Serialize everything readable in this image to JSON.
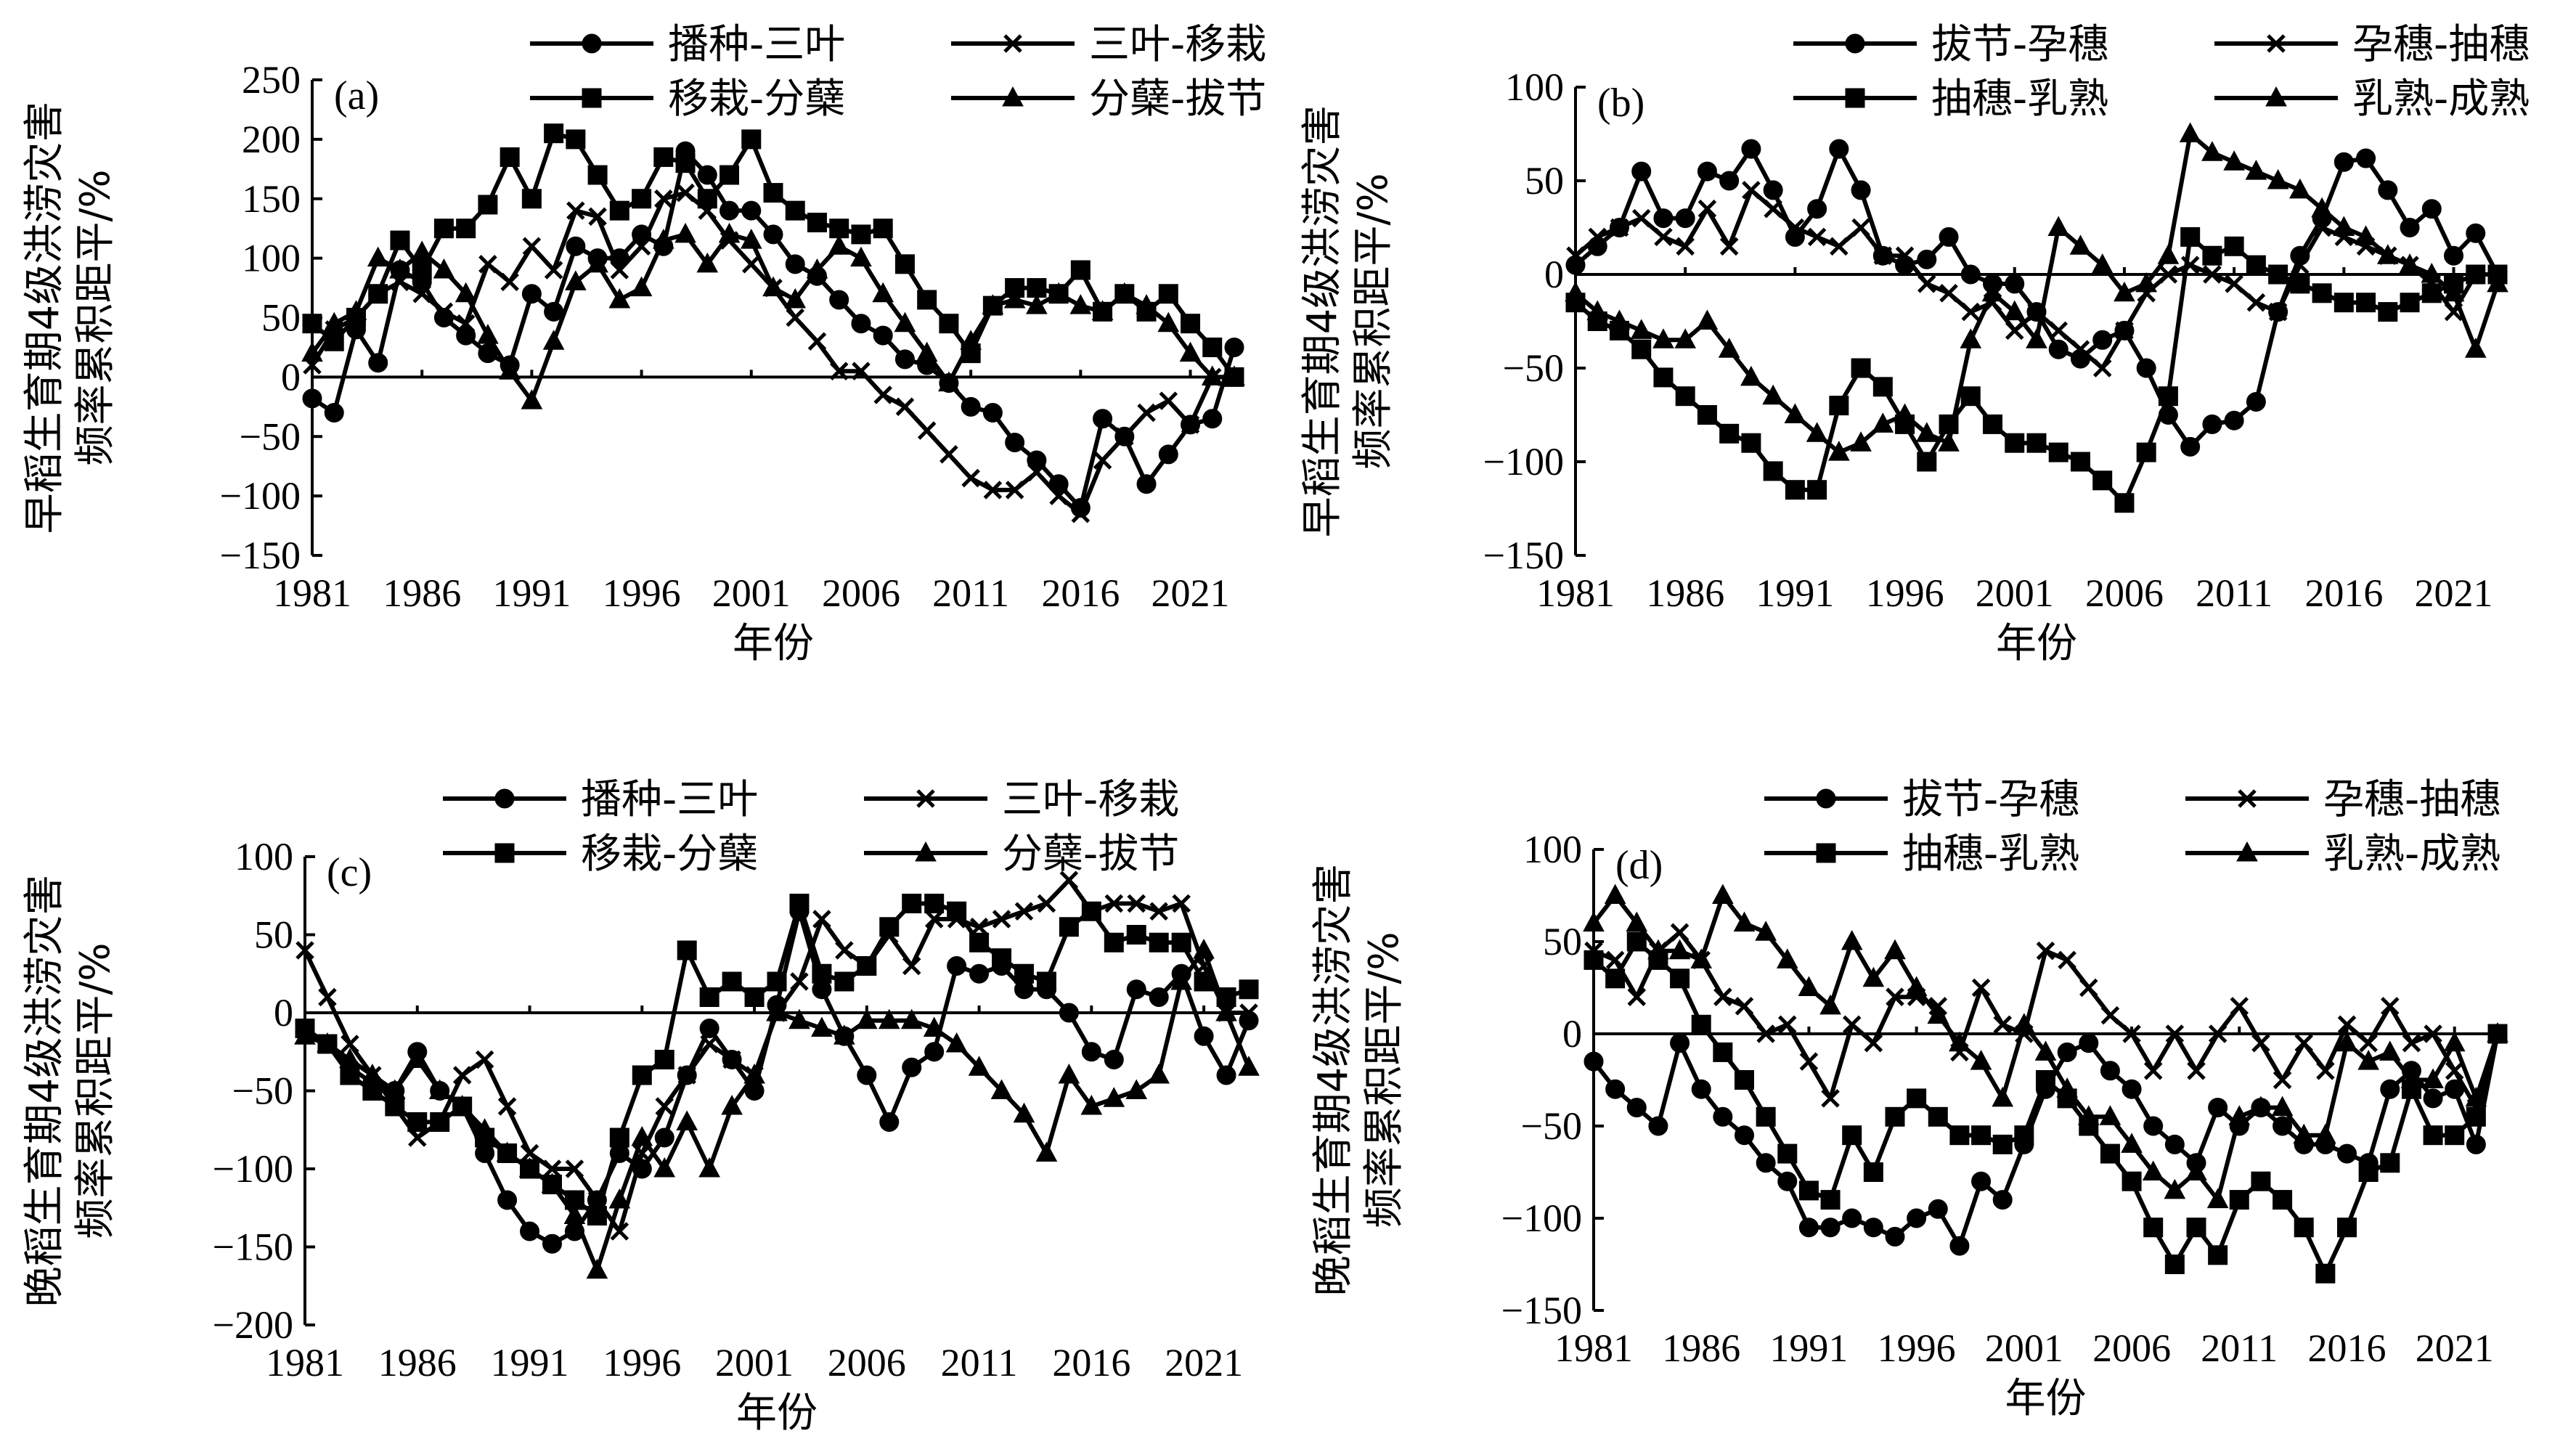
{
  "figure": {
    "xlabel": "年份",
    "x_ticks": [
      "1981",
      "1986",
      "1991",
      "1996",
      "2001",
      "2006",
      "2011",
      "2016",
      "2021"
    ]
  },
  "chart_data": [
    {
      "type": "line",
      "panel": "(a)",
      "ylabel_line1": "早稻生育期4级洪涝灾害",
      "ylabel_line2": "频率累积距平/%",
      "xlabel": "年份",
      "xlim": [
        1981,
        2023
      ],
      "ylim": [
        -150,
        250
      ],
      "y_ticks": [
        "250",
        "200",
        "150",
        "100",
        "50",
        "0",
        "−50",
        "−100",
        "−150"
      ],
      "legend": [
        "播种-三叶",
        "三叶-移栽",
        "移栽-分蘖",
        "分蘖-拔节"
      ],
      "x": [
        1981,
        1982,
        1983,
        1984,
        1985,
        1986,
        1987,
        1988,
        1989,
        1990,
        1991,
        1992,
        1993,
        1994,
        1995,
        1996,
        1997,
        1998,
        1999,
        2000,
        2001,
        2002,
        2003,
        2004,
        2005,
        2006,
        2007,
        2008,
        2009,
        2010,
        2011,
        2012,
        2013,
        2014,
        2015,
        2016,
        2017,
        2018,
        2019,
        2020,
        2021,
        2022,
        2023
      ],
      "series": [
        {
          "name": "播种-三叶",
          "marker": "circle",
          "values": [
            -18,
            -30,
            40,
            12,
            90,
            80,
            50,
            35,
            20,
            10,
            70,
            55,
            110,
            100,
            100,
            120,
            110,
            190,
            170,
            140,
            140,
            120,
            95,
            85,
            65,
            45,
            35,
            15,
            10,
            -5,
            -25,
            -30,
            -55,
            -70,
            -90,
            -110,
            -35,
            -50,
            -90,
            -65,
            -40,
            -35,
            25
          ]
        },
        {
          "name": "三叶-移栽",
          "marker": "x",
          "values": [
            10,
            40,
            50,
            70,
            80,
            70,
            55,
            45,
            95,
            80,
            110,
            90,
            140,
            135,
            90,
            110,
            150,
            155,
            140,
            115,
            95,
            75,
            50,
            30,
            5,
            5,
            -15,
            -25,
            -45,
            -65,
            -85,
            -95,
            -95,
            -80,
            -100,
            -115,
            -70,
            -50,
            -30,
            -20,
            -40,
            0,
            0
          ]
        },
        {
          "name": "移栽-分蘖",
          "marker": "square",
          "values": [
            45,
            30,
            50,
            70,
            115,
            90,
            125,
            125,
            145,
            185,
            150,
            205,
            200,
            170,
            140,
            150,
            185,
            180,
            150,
            170,
            200,
            155,
            140,
            130,
            125,
            120,
            125,
            95,
            65,
            45,
            20,
            60,
            75,
            75,
            70,
            90,
            55,
            70,
            55,
            70,
            45,
            25,
            0
          ]
        },
        {
          "name": "分蘖-拔节",
          "marker": "triangle",
          "values": [
            20,
            45,
            55,
            100,
            90,
            105,
            90,
            70,
            35,
            5,
            -20,
            30,
            80,
            95,
            65,
            75,
            115,
            120,
            95,
            120,
            115,
            75,
            65,
            90,
            110,
            100,
            70,
            45,
            20,
            -5,
            30,
            60,
            65,
            60,
            70,
            60,
            55,
            70,
            60,
            45,
            20,
            0,
            0
          ]
        }
      ]
    },
    {
      "type": "line",
      "panel": "(b)",
      "ylabel_line1": "早稻生育期4级洪涝灾害",
      "ylabel_line2": "频率累积距平/%",
      "xlabel": "年份",
      "xlim": [
        1981,
        2023
      ],
      "ylim": [
        -150,
        100
      ],
      "y_ticks": [
        "100",
        "50",
        "0",
        "−50",
        "−100",
        "−150"
      ],
      "legend": [
        "拔节-孕穗",
        "孕穗-抽穗",
        "抽穗-乳熟",
        "乳熟-成熟"
      ],
      "x": [
        1981,
        1982,
        1983,
        1984,
        1985,
        1986,
        1987,
        1988,
        1989,
        1990,
        1991,
        1992,
        1993,
        1994,
        1995,
        1996,
        1997,
        1998,
        1999,
        2000,
        2001,
        2002,
        2003,
        2004,
        2005,
        2006,
        2007,
        2008,
        2009,
        2010,
        2011,
        2012,
        2013,
        2014,
        2015,
        2016,
        2017,
        2018,
        2019,
        2020,
        2021,
        2022,
        2023
      ],
      "series": [
        {
          "name": "拔节-孕穗",
          "marker": "circle",
          "values": [
            5,
            15,
            25,
            55,
            30,
            30,
            55,
            50,
            67,
            45,
            20,
            35,
            67,
            45,
            10,
            5,
            8,
            20,
            0,
            -5,
            -5,
            -20,
            -40,
            -45,
            -35,
            -30,
            -50,
            -75,
            -92,
            -80,
            -78,
            -68,
            -20,
            10,
            30,
            60,
            62,
            45,
            25,
            35,
            10,
            22,
            0
          ]
        },
        {
          "name": "孕穗-抽穗",
          "marker": "x",
          "values": [
            10,
            20,
            25,
            30,
            20,
            15,
            35,
            15,
            45,
            35,
            25,
            20,
            15,
            25,
            10,
            10,
            -5,
            -10,
            -20,
            -15,
            -30,
            -20,
            -30,
            -40,
            -50,
            -30,
            -10,
            0,
            5,
            0,
            -5,
            -15,
            -20,
            5,
            25,
            20,
            15,
            10,
            5,
            -5,
            -20,
            0,
            0
          ]
        },
        {
          "name": "抽穗-乳熟",
          "marker": "square",
          "values": [
            -15,
            -25,
            -30,
            -40,
            -55,
            -65,
            -75,
            -85,
            -90,
            -105,
            -115,
            -115,
            -70,
            -50,
            -60,
            -80,
            -100,
            -80,
            -65,
            -80,
            -90,
            -90,
            -95,
            -100,
            -110,
            -122,
            -95,
            -65,
            20,
            10,
            15,
            5,
            0,
            -5,
            -10,
            -15,
            -15,
            -20,
            -15,
            -10,
            -5,
            0,
            0
          ]
        },
        {
          "name": "乳熟-成熟",
          "marker": "triangle",
          "values": [
            -10,
            -20,
            -25,
            -30,
            -35,
            -35,
            -25,
            -40,
            -55,
            -65,
            -75,
            -85,
            -95,
            -90,
            -80,
            -75,
            -85,
            -90,
            -35,
            -10,
            -20,
            -35,
            25,
            15,
            5,
            -10,
            -5,
            10,
            75,
            65,
            60,
            55,
            50,
            45,
            35,
            25,
            20,
            10,
            5,
            0,
            -10,
            -40,
            -5
          ]
        }
      ]
    },
    {
      "type": "line",
      "panel": "(c)",
      "ylabel_line1": "晚稻生育期4级洪涝灾害",
      "ylabel_line2": "频率累积距平/%",
      "xlabel": "年份",
      "xlim": [
        1981,
        2023
      ],
      "ylim": [
        -200,
        100
      ],
      "y_ticks": [
        "100",
        "50",
        "0",
        "−50",
        "−100",
        "−150",
        "−200"
      ],
      "legend": [
        "播种-三叶",
        "三叶-移栽",
        "移栽-分蘖",
        "分蘖-拔节"
      ],
      "x": [
        1981,
        1982,
        1983,
        1984,
        1985,
        1986,
        1987,
        1988,
        1989,
        1990,
        1991,
        1992,
        1993,
        1994,
        1995,
        1996,
        1997,
        1998,
        1999,
        2000,
        2001,
        2002,
        2003,
        2004,
        2005,
        2006,
        2007,
        2008,
        2009,
        2010,
        2011,
        2012,
        2013,
        2014,
        2015,
        2016,
        2017,
        2018,
        2019,
        2020,
        2021,
        2022,
        2023
      ],
      "series": [
        {
          "name": "播种-三叶",
          "marker": "circle",
          "values": [
            -10,
            -20,
            -35,
            -45,
            -50,
            -25,
            -50,
            -60,
            -90,
            -120,
            -140,
            -148,
            -140,
            -120,
            -90,
            -100,
            -80,
            -40,
            -10,
            -30,
            -50,
            5,
            65,
            15,
            -15,
            -40,
            -70,
            -35,
            -25,
            30,
            25,
            30,
            15,
            15,
            0,
            -25,
            -30,
            15,
            10,
            25,
            -15,
            -40,
            -5
          ]
        },
        {
          "name": "三叶-移栽",
          "marker": "x",
          "values": [
            40,
            10,
            -20,
            -40,
            -60,
            -80,
            -70,
            -40,
            -30,
            -60,
            -90,
            -100,
            -100,
            -120,
            -140,
            -90,
            -60,
            -40,
            -20,
            -30,
            -40,
            0,
            20,
            60,
            40,
            30,
            50,
            30,
            60,
            60,
            55,
            60,
            65,
            70,
            85,
            65,
            70,
            70,
            65,
            70,
            30,
            0,
            0
          ]
        },
        {
          "name": "移栽-分蘖",
          "marker": "square",
          "values": [
            -10,
            -20,
            -40,
            -50,
            -60,
            -70,
            -70,
            -60,
            -80,
            -90,
            -100,
            -110,
            -120,
            -130,
            -80,
            -40,
            -30,
            40,
            10,
            20,
            10,
            20,
            70,
            25,
            20,
            30,
            55,
            70,
            70,
            65,
            45,
            35,
            25,
            20,
            55,
            65,
            45,
            50,
            45,
            45,
            20,
            10,
            15
          ]
        },
        {
          "name": "分蘖-拔节",
          "marker": "triangle",
          "values": [
            -15,
            -20,
            -30,
            -40,
            -50,
            -30,
            -50,
            -60,
            -75,
            -90,
            -100,
            -110,
            -130,
            -165,
            -120,
            -80,
            -100,
            -70,
            -100,
            -60,
            -40,
            0,
            -5,
            -10,
            -15,
            -5,
            -5,
            -5,
            -10,
            -20,
            -35,
            -50,
            -65,
            -90,
            -40,
            -60,
            -55,
            -50,
            -40,
            20,
            40,
            0,
            -35
          ]
        }
      ]
    },
    {
      "type": "line",
      "panel": "(d)",
      "ylabel_line1": "晚稻生育期4级洪涝灾害",
      "ylabel_line2": "频率累积距平/%",
      "xlabel": "年份",
      "xlim": [
        1981,
        2023
      ],
      "ylim": [
        -150,
        100
      ],
      "y_ticks": [
        "100",
        "50",
        "0",
        "−50",
        "−100",
        "−150"
      ],
      "legend": [
        "拔节-孕穗",
        "孕穗-抽穗",
        "抽穗-乳熟",
        "乳熟-成熟"
      ],
      "x": [
        1981,
        1982,
        1983,
        1984,
        1985,
        1986,
        1987,
        1988,
        1989,
        1990,
        1991,
        1992,
        1993,
        1994,
        1995,
        1996,
        1997,
        1998,
        1999,
        2000,
        2001,
        2002,
        2003,
        2004,
        2005,
        2006,
        2007,
        2008,
        2009,
        2010,
        2011,
        2012,
        2013,
        2014,
        2015,
        2016,
        2017,
        2018,
        2019,
        2020,
        2021,
        2022,
        2023
      ],
      "series": [
        {
          "name": "拔节-孕穗",
          "marker": "circle",
          "values": [
            -15,
            -30,
            -40,
            -50,
            -5,
            -30,
            -45,
            -55,
            -70,
            -80,
            -105,
            -105,
            -100,
            -105,
            -110,
            -100,
            -95,
            -115,
            -80,
            -90,
            -60,
            -30,
            -10,
            -5,
            -20,
            -30,
            -50,
            -60,
            -70,
            -40,
            -50,
            -40,
            -50,
            -60,
            -60,
            -65,
            -70,
            -30,
            -20,
            -35,
            -30,
            -60,
            0
          ]
        },
        {
          "name": "孕穗-抽穗",
          "marker": "x",
          "values": [
            45,
            40,
            20,
            45,
            55,
            40,
            20,
            15,
            0,
            5,
            -15,
            -35,
            5,
            -5,
            20,
            20,
            15,
            -10,
            25,
            5,
            0,
            45,
            40,
            25,
            10,
            0,
            -20,
            0,
            -20,
            0,
            15,
            -5,
            -25,
            -5,
            -20,
            5,
            -5,
            15,
            -5,
            0,
            -20,
            -40,
            0
          ]
        },
        {
          "name": "抽穗-乳熟",
          "marker": "square",
          "values": [
            40,
            30,
            50,
            40,
            30,
            5,
            -10,
            -25,
            -45,
            -65,
            -85,
            -90,
            -55,
            -75,
            -45,
            -35,
            -45,
            -55,
            -55,
            -60,
            -55,
            -25,
            -35,
            -50,
            -65,
            -80,
            -105,
            -125,
            -105,
            -120,
            -90,
            -80,
            -90,
            -105,
            -130,
            -105,
            -75,
            -70,
            -30,
            -55,
            -55,
            -45,
            0
          ]
        },
        {
          "name": "乳熟-成熟",
          "marker": "triangle",
          "values": [
            60,
            75,
            60,
            45,
            45,
            40,
            75,
            60,
            55,
            40,
            25,
            15,
            50,
            30,
            45,
            25,
            10,
            -5,
            -15,
            -35,
            5,
            -10,
            -30,
            -45,
            -45,
            -60,
            -75,
            -85,
            -75,
            -90,
            -45,
            -40,
            -40,
            -55,
            -55,
            -5,
            -15,
            -10,
            -25,
            -25,
            -5,
            -35,
            0
          ]
        }
      ]
    }
  ]
}
